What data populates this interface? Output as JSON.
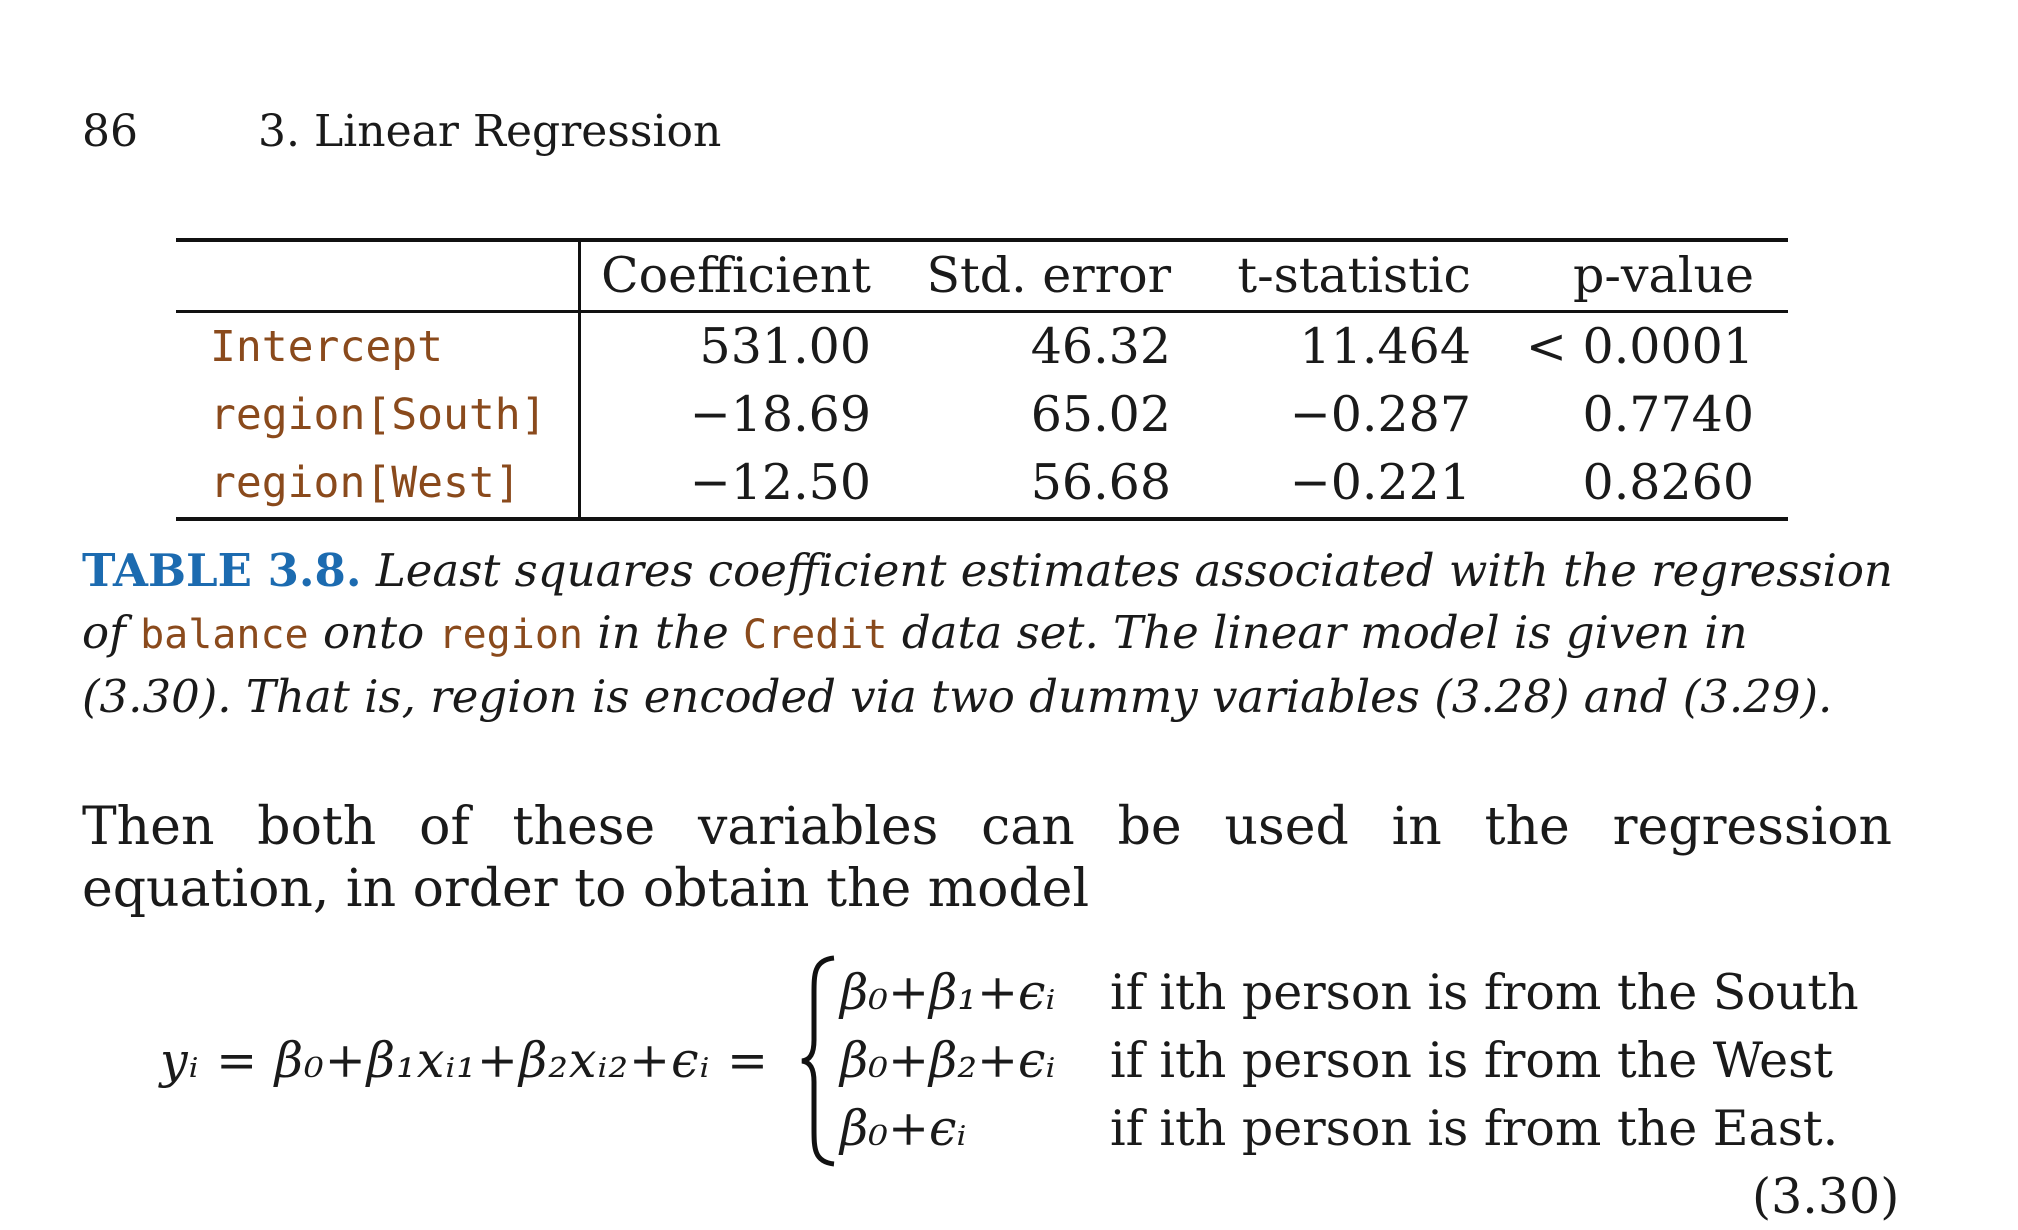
{
  "header": {
    "page_number": "86",
    "chapter": "3.  Linear Regression"
  },
  "table": {
    "columns": [
      "Coefficient",
      "Std. error",
      "t-statistic",
      "p-value"
    ],
    "rows": [
      {
        "name": "Intercept",
        "coef": "531.00",
        "se": "46.32",
        "t": "11.464",
        "p": "< 0.0001"
      },
      {
        "name": "region[South]",
        "coef": "−18.69",
        "se": "65.02",
        "t": "−0.287",
        "p": "0.7740"
      },
      {
        "name": "region[West]",
        "coef": "−12.50",
        "se": "56.68",
        "t": "−0.221",
        "p": "0.8260"
      }
    ]
  },
  "caption": {
    "label": "TABLE 3.8.",
    "text1": "Least squares coefficient estimates associated with the regression of",
    "code1": "balance",
    "text2": "onto",
    "code2": "region",
    "text3": "in the",
    "code3": "Credit",
    "text4": "data set. The linear model is given in (3.30). That is, region is encoded via two dummy variables (3.28) and (3.29)."
  },
  "paragraph": "Then both of these variables can be used in the regression equation, in order to obtain the model",
  "equation": {
    "lhs": "yᵢ = β₀+β₁xᵢ₁+β₂xᵢ₂+ϵᵢ =",
    "cases": [
      {
        "expr": "β₀+β₁+ϵᵢ",
        "cond": "if ith person is from the South"
      },
      {
        "expr": "β₀+β₂+ϵᵢ",
        "cond": "if ith person is from the West"
      },
      {
        "expr": "β₀+ϵᵢ",
        "cond": "if ith person is from the East."
      }
    ],
    "number": "(3.30)"
  }
}
